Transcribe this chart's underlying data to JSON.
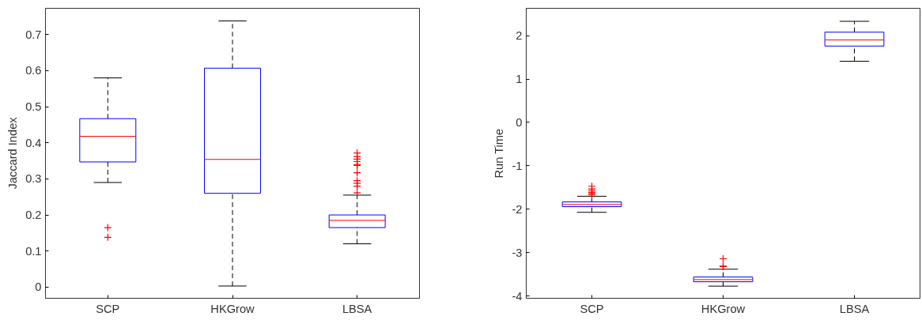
{
  "chart_data": [
    {
      "type": "box",
      "ylabel": "Jaccard Index",
      "categories": [
        "SCP",
        "HKGrow",
        "LBSA"
      ],
      "ylim": [
        -0.031,
        0.773
      ],
      "yticks": [
        0,
        0.1,
        0.2,
        0.3,
        0.4,
        0.5,
        0.6,
        0.7
      ],
      "grid": false,
      "color": "#0000ff",
      "boxes": [
        {
          "low": 0.29,
          "q1": 0.347,
          "median": 0.418,
          "q3": 0.467,
          "high": 0.58,
          "outliers": [
            0.165,
            0.138
          ]
        },
        {
          "low": 0.003,
          "q1": 0.26,
          "median": 0.354,
          "q3": 0.607,
          "high": 0.738
        },
        {
          "low": 0.12,
          "q1": 0.165,
          "median": 0.185,
          "q3": 0.2,
          "high": 0.255,
          "outliers": [
            0.372,
            0.362,
            0.355,
            0.348,
            0.34,
            0.337,
            0.317,
            0.295,
            0.288,
            0.28,
            0.261
          ]
        }
      ]
    },
    {
      "type": "box",
      "ylabel": "Run Time",
      "categories": [
        "SCP",
        "HKGrow",
        "LBSA"
      ],
      "ylim": [
        -4.05,
        2.63
      ],
      "yticks": [
        -4,
        -3,
        -2,
        -1,
        0,
        1,
        2
      ],
      "grid": false,
      "color": "#0000ff",
      "boxes": [
        {
          "low": -2.07,
          "q1": -1.94,
          "median": -1.89,
          "q3": -1.83,
          "high": -1.7,
          "outliers": [
            -1.47,
            -1.53,
            -1.57,
            -1.61,
            -1.64,
            -1.67
          ]
        },
        {
          "low": -3.77,
          "q1": -3.67,
          "median": -3.62,
          "q3": -3.56,
          "high": -3.38,
          "outliers": [
            -3.14,
            -3.31,
            -3.32
          ]
        },
        {
          "low": 1.41,
          "q1": 1.76,
          "median": 1.9,
          "q3": 2.08,
          "high": 2.33
        }
      ]
    }
  ]
}
